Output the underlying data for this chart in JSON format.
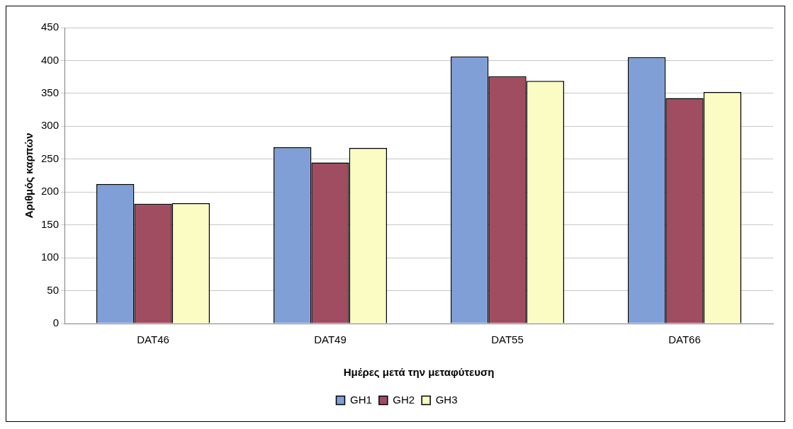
{
  "chart_data": {
    "type": "bar",
    "xlabel": "Ημέρες μετά την μεταφύτευση",
    "ylabel": "Αριθμός καρπών",
    "categories": [
      "DAT46",
      "DAT49",
      "DAT55",
      "DAT66"
    ],
    "series": [
      {
        "name": "GH1",
        "color": "#7f9fd6",
        "values": [
          212,
          268,
          406,
          405
        ]
      },
      {
        "name": "GH2",
        "color": "#a04d62",
        "values": [
          182,
          245,
          376,
          343
        ]
      },
      {
        "name": "GH3",
        "color": "#fbfcc4",
        "values": [
          183,
          267,
          369,
          352
        ]
      }
    ],
    "ylim": [
      0,
      450
    ],
    "yticks": [
      0,
      50,
      100,
      150,
      200,
      250,
      300,
      350,
      400,
      450
    ],
    "grid": "y",
    "legend": "bottom"
  }
}
